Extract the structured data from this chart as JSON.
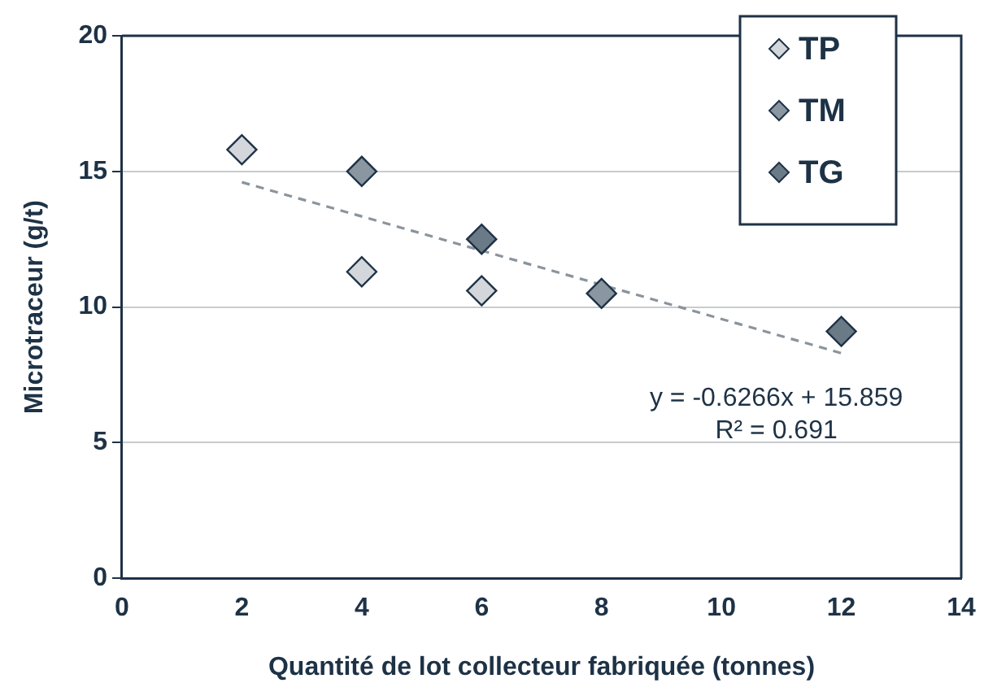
{
  "chart_data": {
    "type": "scatter",
    "xlabel": "Quantité de lot collecteur fabriquée (tonnes)",
    "ylabel": "Microtraceur (g/t)",
    "xlim": [
      0,
      14
    ],
    "xticks": [
      0,
      2,
      4,
      6,
      8,
      10,
      12,
      14
    ],
    "ylim": [
      0,
      20
    ],
    "yticks": [
      0,
      5,
      10,
      15,
      20
    ],
    "grid": "y",
    "legend": "top right",
    "marker": "diamond",
    "series": [
      {
        "name": "TP",
        "color": "#d3d6da",
        "x": [
          2,
          4,
          6
        ],
        "values": [
          15.8,
          11.3,
          10.6
        ]
      },
      {
        "name": "TM",
        "color": "#8a96a0",
        "x": [
          4,
          8
        ],
        "values": [
          15,
          10.5
        ]
      },
      {
        "name": "TG",
        "color": "#6b7a87",
        "x": [
          6,
          12
        ],
        "values": [
          12.5,
          9.1
        ]
      },
      {
        "type": "line",
        "color": "#8a949c",
        "line_style": "dashed",
        "marker": "none",
        "x": [
          2,
          12
        ],
        "values": [
          14.6,
          8.3
        ]
      }
    ],
    "annotations": [
      "y = -0.6266x + 15.859",
      "R² = 0.691"
    ]
  }
}
